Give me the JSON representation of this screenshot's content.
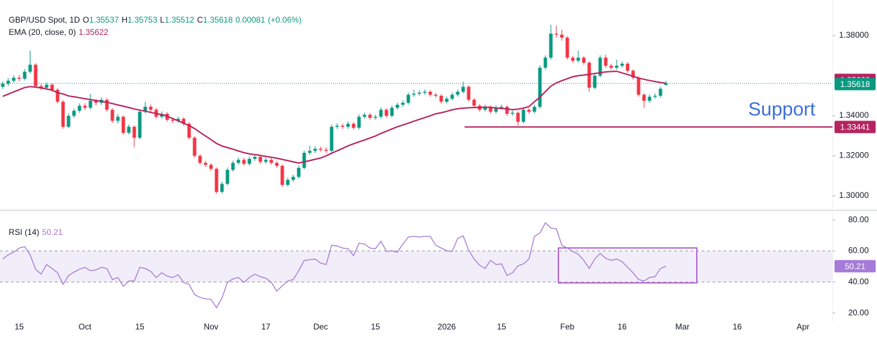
{
  "chart_data": [
    {
      "type": "candlestick",
      "title": "GBP/USD Spot, 1D",
      "ohlc_prefixes": [
        "O",
        "H",
        "L",
        "C"
      ],
      "change": 0.00081,
      "change_percent_label": "(+0.06%)",
      "up_color": "#089981",
      "down_color": "#f23645",
      "categories": [
        null,
        null,
        null,
        "15",
        null,
        null,
        null,
        null,
        null,
        null,
        null,
        null,
        null,
        null,
        null,
        "Oct",
        null,
        null,
        null,
        null,
        null,
        null,
        null,
        null,
        null,
        "15",
        null,
        null,
        null,
        null,
        null,
        null,
        null,
        null,
        null,
        null,
        null,
        null,
        "Nov",
        null,
        null,
        null,
        null,
        null,
        null,
        null,
        null,
        null,
        "17",
        null,
        null,
        null,
        null,
        null,
        null,
        null,
        null,
        null,
        "Dec",
        null,
        null,
        null,
        null,
        null,
        null,
        null,
        null,
        null,
        "15",
        null,
        null,
        null,
        null,
        null,
        null,
        null,
        null,
        null,
        null,
        null,
        null,
        "2026",
        null,
        null,
        null,
        null,
        null,
        null,
        null,
        null,
        null,
        "15",
        null,
        null,
        null,
        null,
        null,
        null,
        null,
        null,
        null,
        null,
        null,
        "Feb",
        null,
        null,
        null,
        null,
        null,
        null,
        null,
        null,
        null,
        "16",
        null,
        null,
        null,
        null,
        null,
        null,
        null,
        null,
        null,
        null,
        "Mar",
        null,
        null,
        null,
        null,
        null,
        null,
        null,
        null,
        null,
        "16",
        null,
        null,
        null,
        null,
        null,
        null,
        null,
        null,
        null,
        null,
        null,
        "Apr",
        null,
        null,
        null,
        null,
        null
      ],
      "open": [
        1.3545,
        1.356,
        1.3575,
        1.359,
        1.3585,
        1.362,
        1.3655,
        1.3548,
        1.354,
        1.3555,
        1.353,
        1.347,
        1.3345,
        1.34,
        1.3425,
        1.345,
        1.344,
        1.3475,
        1.3465,
        1.348,
        1.343,
        1.3375,
        1.3395,
        1.3315,
        1.3345,
        1.329,
        1.342,
        1.3445,
        1.343,
        1.3395,
        1.341,
        1.338,
        1.3375,
        1.3385,
        1.336,
        1.329,
        1.32,
        1.3165,
        1.3155,
        1.3135,
        1.302,
        1.306,
        1.313,
        1.3165,
        1.318,
        1.316,
        1.3185,
        1.3195,
        1.317,
        1.318,
        1.3165,
        1.315,
        1.3055,
        1.308,
        1.3095,
        1.314,
        1.3215,
        1.3225,
        1.3235,
        1.323,
        1.3225,
        1.3345,
        1.335,
        1.3345,
        1.336,
        1.334,
        1.3395,
        1.3405,
        1.339,
        1.3395,
        1.343,
        1.34,
        1.344,
        1.3455,
        1.3465,
        1.3505,
        1.351,
        1.3515,
        1.352,
        1.3505,
        1.35,
        1.347,
        1.3485,
        1.3505,
        1.352,
        1.3545,
        1.348,
        1.345,
        1.343,
        1.3445,
        1.342,
        1.344,
        1.3445,
        1.341,
        1.3415,
        1.337,
        1.343,
        1.342,
        1.3445,
        1.364,
        1.369,
        1.381,
        1.3805,
        1.379,
        1.369,
        1.3675,
        1.369,
        1.3665,
        1.354,
        1.36,
        1.369,
        1.365,
        1.364,
        1.365,
        1.366,
        1.3625,
        1.359,
        1.3505,
        1.3475,
        1.3495,
        1.35,
        1.35537,
        null,
        null,
        null,
        null,
        null,
        null,
        null,
        null,
        null,
        null,
        null,
        null,
        null,
        null,
        null,
        null,
        null,
        null,
        null,
        null,
        null,
        null,
        null,
        null,
        null,
        null,
        null,
        null,
        null,
        null
      ],
      "high": [
        1.3572,
        1.3588,
        1.3602,
        1.3604,
        1.3633,
        1.3725,
        1.3662,
        1.356,
        1.3566,
        1.3563,
        1.3538,
        1.3478,
        1.3412,
        1.3436,
        1.3462,
        1.3462,
        1.351,
        1.3484,
        1.3492,
        1.3488,
        1.3438,
        1.3408,
        1.3402,
        1.3356,
        1.3352,
        1.3432,
        1.347,
        1.3456,
        1.3438,
        1.3422,
        1.3418,
        1.3392,
        1.3396,
        1.3393,
        1.3368,
        1.3298,
        1.3208,
        1.3176,
        1.3164,
        1.3142,
        1.3072,
        1.3142,
        1.3176,
        1.3192,
        1.319,
        1.3196,
        1.3206,
        1.3204,
        1.3192,
        1.319,
        1.3174,
        1.3158,
        1.3092,
        1.3106,
        1.3152,
        1.3226,
        1.325,
        1.3248,
        1.3246,
        1.3242,
        1.3356,
        1.3362,
        1.336,
        1.3372,
        1.3368,
        1.3406,
        1.3416,
        1.3414,
        1.3406,
        1.3442,
        1.3438,
        1.3452,
        1.3466,
        1.3476,
        1.3516,
        1.353,
        1.3526,
        1.3532,
        1.3528,
        1.3514,
        1.3508,
        1.3496,
        1.3516,
        1.3532,
        1.357,
        1.3552,
        1.3488,
        1.3458,
        1.3456,
        1.3452,
        1.3452,
        1.3456,
        1.3452,
        1.3426,
        1.3422,
        1.3442,
        1.3438,
        1.3456,
        1.3652,
        1.3702,
        1.3855,
        1.385,
        1.383,
        1.3798,
        1.37,
        1.3725,
        1.3698,
        1.3672,
        1.3612,
        1.3702,
        1.3705,
        1.366,
        1.368,
        1.3672,
        1.3668,
        1.3632,
        1.3598,
        1.3512,
        1.3506,
        1.3512,
        1.3546,
        1.35753,
        null,
        null,
        null,
        null,
        null,
        null,
        null,
        null,
        null,
        null,
        null,
        null,
        null,
        null,
        null,
        null,
        null,
        null,
        null,
        null,
        null,
        null,
        null,
        null,
        null,
        null,
        null,
        null,
        null,
        null
      ],
      "low": [
        1.3533,
        1.3548,
        1.3565,
        1.3572,
        1.3576,
        1.361,
        1.354,
        1.3528,
        1.3531,
        1.352,
        1.3462,
        1.3335,
        1.3338,
        1.339,
        1.3415,
        1.3428,
        1.3432,
        1.3452,
        1.3455,
        1.342,
        1.3365,
        1.3362,
        1.3305,
        1.3306,
        1.3245,
        1.3282,
        1.3411,
        1.3418,
        1.3385,
        1.3386,
        1.337,
        1.3364,
        1.3365,
        1.335,
        1.328,
        1.319,
        1.3155,
        1.3144,
        1.3125,
        1.301,
        1.3012,
        1.3052,
        1.3121,
        1.3155,
        1.315,
        1.3151,
        1.3175,
        1.316,
        1.316,
        1.3155,
        1.314,
        1.3045,
        1.3046,
        1.307,
        1.3086,
        1.3132,
        1.3205,
        1.3214,
        1.322,
        1.3214,
        1.3216,
        1.3335,
        1.3334,
        1.3335,
        1.333,
        1.3332,
        1.3385,
        1.338,
        1.338,
        1.3386,
        1.339,
        1.3392,
        1.3431,
        1.3445,
        1.3456,
        1.3495,
        1.35,
        1.3505,
        1.3495,
        1.349,
        1.346,
        1.3461,
        1.3476,
        1.3496,
        1.3511,
        1.347,
        1.344,
        1.342,
        1.3421,
        1.341,
        1.3411,
        1.343,
        1.34,
        1.34,
        1.335,
        1.3362,
        1.341,
        1.3411,
        1.3436,
        1.363,
        1.368,
        1.379,
        1.3775,
        1.368,
        1.3664,
        1.3665,
        1.3655,
        1.352,
        1.3532,
        1.3592,
        1.364,
        1.363,
        1.363,
        1.364,
        1.3615,
        1.358,
        1.3495,
        1.344,
        1.3465,
        1.3485,
        1.349,
        1.35512,
        null,
        null,
        null,
        null,
        null,
        null,
        null,
        null,
        null,
        null,
        null,
        null,
        null,
        null,
        null,
        null,
        null,
        null,
        null,
        null,
        null,
        null,
        null,
        null,
        null,
        null,
        null,
        null,
        null,
        null
      ],
      "close": [
        1.356,
        1.3575,
        1.359,
        1.3585,
        1.362,
        1.3655,
        1.3548,
        1.354,
        1.3555,
        1.353,
        1.347,
        1.3345,
        1.34,
        1.3425,
        1.345,
        1.344,
        1.3475,
        1.3465,
        1.348,
        1.343,
        1.3375,
        1.3395,
        1.3315,
        1.3345,
        1.329,
        1.342,
        1.3445,
        1.343,
        1.3395,
        1.341,
        1.338,
        1.3375,
        1.3385,
        1.336,
        1.329,
        1.32,
        1.3165,
        1.3155,
        1.3135,
        1.302,
        1.306,
        1.313,
        1.3165,
        1.318,
        1.316,
        1.3185,
        1.3195,
        1.317,
        1.318,
        1.3165,
        1.315,
        1.3055,
        1.308,
        1.3095,
        1.314,
        1.3215,
        1.3225,
        1.3235,
        1.323,
        1.3225,
        1.3345,
        1.335,
        1.3345,
        1.336,
        1.334,
        1.3395,
        1.3405,
        1.339,
        1.3395,
        1.343,
        1.34,
        1.344,
        1.3455,
        1.3465,
        1.3505,
        1.351,
        1.3515,
        1.352,
        1.3505,
        1.35,
        1.347,
        1.3485,
        1.3505,
        1.352,
        1.3545,
        1.348,
        1.345,
        1.343,
        1.3445,
        1.342,
        1.344,
        1.3445,
        1.341,
        1.3415,
        1.337,
        1.343,
        1.342,
        1.3445,
        1.364,
        1.369,
        1.381,
        1.3805,
        1.379,
        1.369,
        1.3675,
        1.369,
        1.3665,
        1.354,
        1.36,
        1.369,
        1.365,
        1.364,
        1.365,
        1.366,
        1.3625,
        1.359,
        1.3505,
        1.3475,
        1.3495,
        1.35,
        1.3535,
        1.35618,
        null,
        null,
        null,
        null,
        null,
        null,
        null,
        null,
        null,
        null,
        null,
        null,
        null,
        null,
        null,
        null,
        null,
        null,
        null,
        null,
        null,
        null,
        null,
        null,
        null,
        null,
        null,
        null,
        null,
        null
      ],
      "series": [
        {
          "name": "EMA (20, close, 0)",
          "color": "#b5245e",
          "values": [
            1.3497,
            1.3508,
            1.3519,
            1.353,
            1.3541,
            1.3546,
            1.3543,
            1.3539,
            1.3534,
            1.3528,
            1.3515,
            1.3509,
            1.3499,
            1.3495,
            1.349,
            1.3485,
            1.3481,
            1.3476,
            1.3472,
            1.3467,
            1.3461,
            1.3454,
            1.3448,
            1.3441,
            1.3434,
            1.3428,
            1.3423,
            1.3417,
            1.3411,
            1.3406,
            1.3398,
            1.3386,
            1.3375,
            1.3363,
            1.3351,
            1.3336,
            1.3317,
            1.3299,
            1.3281,
            1.3262,
            1.3249,
            1.3241,
            1.3233,
            1.3224,
            1.3216,
            1.321,
            1.3206,
            1.3202,
            1.3197,
            1.3193,
            1.3188,
            1.3182,
            1.3176,
            1.317,
            1.3164,
            1.317,
            1.3176,
            1.3183,
            1.3189,
            1.32,
            1.3213,
            1.3225,
            1.3237,
            1.325,
            1.326,
            1.327,
            1.3279,
            1.3289,
            1.3299,
            1.3312,
            1.3323,
            1.3334,
            1.3345,
            1.3354,
            1.3363,
            1.3373,
            1.3382,
            1.3391,
            1.34,
            1.341,
            1.3415,
            1.3422,
            1.343,
            1.3435,
            1.3438,
            1.344,
            1.3441,
            1.3442,
            1.3443,
            1.3442,
            1.3439,
            1.3437,
            1.3434,
            1.3431,
            1.3433,
            1.3438,
            1.3446,
            1.347,
            1.3493,
            1.3521,
            1.3548,
            1.3564,
            1.3575,
            1.3585,
            1.3595,
            1.36,
            1.3603,
            1.3607,
            1.3611,
            1.3615,
            1.3619,
            1.3621,
            1.3622,
            1.3614,
            1.3606,
            1.3597,
            1.3588,
            1.3582,
            1.3576,
            1.3571,
            1.3566,
            1.35622,
            null,
            null,
            null,
            null,
            null,
            null,
            null,
            null,
            null,
            null,
            null,
            null,
            null,
            null,
            null,
            null,
            null,
            null,
            null,
            null,
            null,
            null,
            null,
            null,
            null,
            null,
            null,
            null,
            null,
            null
          ]
        }
      ],
      "support": {
        "label": "Support",
        "value": 1.33441,
        "color": "#b5245e",
        "text_color": "#3d6fd9"
      },
      "ylim": [
        1.2935,
        1.3978
      ],
      "yticks": [
        {
          "value": 1.3,
          "label": "1.30000"
        },
        {
          "value": 1.32,
          "label": "1.32000"
        },
        {
          "value": 1.34,
          "label": "1.34000"
        },
        {
          "value": 1.38,
          "label": "1.38000"
        }
      ],
      "grid": false
    },
    {
      "type": "line",
      "title": "RSI (14)",
      "series": [
        {
          "name": "RSI (14)",
          "color": "#a57ad8",
          "values": [
            54.8,
            57.5,
            59.2,
            61.9,
            62.8,
            57.5,
            48.2,
            45.1,
            51.3,
            48.7,
            46.0,
            38.5,
            44.2,
            46.4,
            48.2,
            49.5,
            47.3,
            47.8,
            49.5,
            48.7,
            41.6,
            42.9,
            37.2,
            40.7,
            40.7,
            49.5,
            48.7,
            46.9,
            42.9,
            46.0,
            43.8,
            42.9,
            44.7,
            39.8,
            38.5,
            31.9,
            30.1,
            29.2,
            28.8,
            23.5,
            29.7,
            39.8,
            42.0,
            42.9,
            39.8,
            42.9,
            45.1,
            43.4,
            42.5,
            39.8,
            34.1,
            37.6,
            40.7,
            41.6,
            47.3,
            53.9,
            54.4,
            54.8,
            52.2,
            51.3,
            63.7,
            63.2,
            61.9,
            61.5,
            57.0,
            65.0,
            64.5,
            61.9,
            61.5,
            66.3,
            59.7,
            60.1,
            59.2,
            64.5,
            69.0,
            69.4,
            69.0,
            69.4,
            69.4,
            63.7,
            61.9,
            60.1,
            59.7,
            68.1,
            69.8,
            60.6,
            54.8,
            50.9,
            48.7,
            54.0,
            51.3,
            51.7,
            44.2,
            46.0,
            50.4,
            51.7,
            54.8,
            69.4,
            71.6,
            78.2,
            74.7,
            74.3,
            63.7,
            61.9,
            59.7,
            57.9,
            54.0,
            48.7,
            54.8,
            58.4,
            55.3,
            54.0,
            54.8,
            53.1,
            49.5,
            46.0,
            41.6,
            40.7,
            42.9,
            43.4,
            48.7,
            50.21,
            null,
            null,
            null,
            null,
            null,
            null,
            null,
            null,
            null,
            null,
            null,
            null,
            null,
            null,
            null,
            null,
            null,
            null,
            null,
            null,
            null,
            null,
            null,
            null,
            null,
            null,
            null,
            null,
            null,
            null
          ]
        }
      ],
      "band": [
        40,
        60
      ],
      "ylim": [
        14.3,
        84.9
      ],
      "yticks": [
        {
          "value": 20,
          "label": "20.00"
        },
        {
          "value": 40,
          "label": "40.00"
        },
        {
          "value": 60,
          "label": "60.00"
        },
        {
          "value": 80,
          "label": "80.00"
        }
      ]
    }
  ]
}
